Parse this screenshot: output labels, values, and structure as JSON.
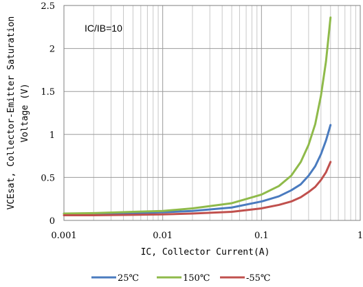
{
  "chart_data": {
    "type": "line",
    "annotation": "IC/IB=10",
    "xlabel": "IC, Collector Current(A)",
    "ylabel_line1": "VCEsat, Collector-Emitter Saturation",
    "ylabel_line2": "Voltage (V)",
    "x_scale": "log",
    "xlim": [
      0.001,
      1
    ],
    "ylim": [
      0,
      2.5
    ],
    "x_ticks": [
      {
        "value": 0.001,
        "label": "0.001"
      },
      {
        "value": 0.01,
        "label": "0.01"
      },
      {
        "value": 0.1,
        "label": "0.1"
      },
      {
        "value": 1,
        "label": "1"
      }
    ],
    "y_ticks": [
      {
        "value": 0,
        "label": "0"
      },
      {
        "value": 0.5,
        "label": "0.5"
      },
      {
        "value": 1,
        "label": "1"
      },
      {
        "value": 1.5,
        "label": "1.5"
      },
      {
        "value": 2,
        "label": "2"
      },
      {
        "value": 2.5,
        "label": "2.5"
      }
    ],
    "grid": true,
    "legend_position": "bottom",
    "series": [
      {
        "name": "25℃",
        "color": "#4a7bbf",
        "x": [
          0.001,
          0.002,
          0.005,
          0.01,
          0.02,
          0.05,
          0.1,
          0.15,
          0.2,
          0.25,
          0.3,
          0.35,
          0.4,
          0.45,
          0.5
        ],
        "y": [
          0.08,
          0.08,
          0.085,
          0.095,
          0.11,
          0.15,
          0.22,
          0.28,
          0.35,
          0.42,
          0.52,
          0.63,
          0.77,
          0.93,
          1.11
        ]
      },
      {
        "name": "150℃",
        "color": "#8fba4a",
        "x": [
          0.001,
          0.002,
          0.005,
          0.01,
          0.02,
          0.05,
          0.1,
          0.15,
          0.2,
          0.25,
          0.3,
          0.35,
          0.4,
          0.45,
          0.5
        ],
        "y": [
          0.08,
          0.085,
          0.1,
          0.11,
          0.14,
          0.2,
          0.3,
          0.4,
          0.52,
          0.68,
          0.88,
          1.12,
          1.45,
          1.85,
          2.36
        ]
      },
      {
        "name": "-55℃",
        "color": "#c0504d",
        "x": [
          0.001,
          0.002,
          0.005,
          0.01,
          0.02,
          0.05,
          0.1,
          0.15,
          0.2,
          0.25,
          0.3,
          0.35,
          0.4,
          0.45,
          0.5
        ],
        "y": [
          0.06,
          0.06,
          0.065,
          0.07,
          0.08,
          0.1,
          0.14,
          0.18,
          0.22,
          0.27,
          0.33,
          0.39,
          0.47,
          0.56,
          0.68
        ]
      }
    ]
  }
}
